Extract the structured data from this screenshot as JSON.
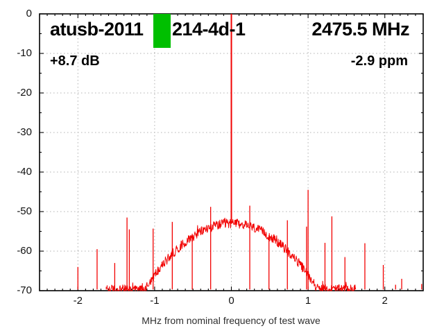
{
  "chart_data": {
    "type": "line",
    "title_left": "atusb-2011",
    "title_mid": "214-4d-1",
    "title_right": "2475.5 MHz",
    "gain_label": "+8.7 dB",
    "ppm_label": "-2.9 ppm",
    "xlabel": "MHz from nominal frequency of test wave",
    "xlim": [
      -2.5,
      2.5
    ],
    "ylim": [
      -70,
      0
    ],
    "x_tick_values": [
      -2,
      -1,
      0,
      1,
      2
    ],
    "x_tick_labels": [
      "-2",
      "-1",
      "0",
      "1",
      "2"
    ],
    "x_minor_step": 0.1,
    "y_tick_values": [
      0,
      -10,
      -20,
      -30,
      -40,
      -50,
      -60,
      -70
    ],
    "y_tick_labels": [
      "0",
      "-10",
      "-20",
      "-30",
      "-40",
      "-50",
      "-60",
      "-70"
    ],
    "y_minor_step": 5,
    "grid": true,
    "legend": "none",
    "colors": {
      "trace": "#f20000",
      "grid": "#b0b0b0",
      "axis": "#000000",
      "marker_green": "#00bf00"
    },
    "hump": {
      "center_mhz": 0,
      "peak_db": -53,
      "rolloff_db_per_mhz2": 13,
      "noise_amp_db": 1.2,
      "visible_span_mhz": 1.62,
      "floor_db": -69.7
    },
    "carrier_spike": {
      "mhz": 0.0,
      "db": 0.0
    },
    "spurs": [
      {
        "mhz": -2.0,
        "db": -64.0
      },
      {
        "mhz": -1.75,
        "db": -59.5
      },
      {
        "mhz": -1.63,
        "db": -69.0
      },
      {
        "mhz": -1.52,
        "db": -63.0
      },
      {
        "mhz": -1.36,
        "db": -51.5
      },
      {
        "mhz": -1.33,
        "db": -54.5
      },
      {
        "mhz": -1.02,
        "db": -54.3
      },
      {
        "mhz": -0.77,
        "db": -52.6
      },
      {
        "mhz": -0.51,
        "db": -56.6
      },
      {
        "mhz": -0.27,
        "db": -48.8
      },
      {
        "mhz": 0.24,
        "db": -48.5
      },
      {
        "mhz": 0.49,
        "db": -56.0
      },
      {
        "mhz": 0.73,
        "db": -52.2
      },
      {
        "mhz": 0.98,
        "db": -53.8
      },
      {
        "mhz": 1.0,
        "db": -44.5
      },
      {
        "mhz": 1.22,
        "db": -57.9
      },
      {
        "mhz": 1.31,
        "db": -51.2
      },
      {
        "mhz": 1.48,
        "db": -61.5
      },
      {
        "mhz": 1.61,
        "db": -68.5
      },
      {
        "mhz": 1.74,
        "db": -58.0
      },
      {
        "mhz": 1.98,
        "db": -63.5
      },
      {
        "mhz": 2.14,
        "db": -68.5
      },
      {
        "mhz": 2.22,
        "db": -67.0
      },
      {
        "mhz": 2.48,
        "db": -68.3
      }
    ]
  }
}
